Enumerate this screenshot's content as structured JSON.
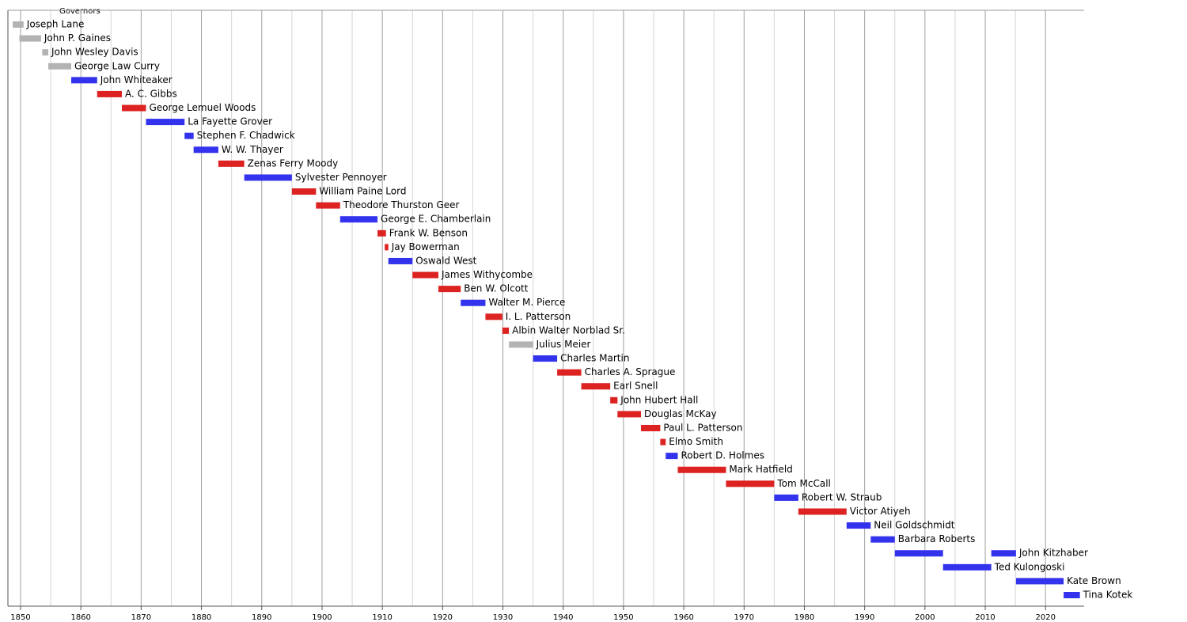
{
  "chart_data": {
    "type": "timeline",
    "title": "Governors",
    "xlim": [
      1847.9,
      2026.4
    ],
    "xticks": [
      1850,
      1860,
      1870,
      1880,
      1890,
      1900,
      1910,
      1920,
      1930,
      1940,
      1950,
      1960,
      1970,
      1980,
      1990,
      2000,
      2010,
      2020
    ],
    "minor_xticks": [
      1855,
      1865,
      1875,
      1885,
      1895,
      1905,
      1915,
      1925,
      1935,
      1945,
      1955,
      1965,
      1975,
      1985,
      1995,
      2005,
      2015
    ],
    "grid": true,
    "rows": [
      {
        "name": "Joseph Lane",
        "color": "#b3b3b3",
        "spans": [
          [
            1848.7,
            1850.5
          ]
        ]
      },
      {
        "name": "John P. Gaines",
        "color": "#b3b3b3",
        "spans": [
          [
            1849.8,
            1853.4
          ]
        ]
      },
      {
        "name": "John Wesley Davis",
        "color": "#b3b3b3",
        "spans": [
          [
            1853.6,
            1854.6
          ]
        ]
      },
      {
        "name": "George Law Curry",
        "color": "#b3b3b3",
        "spans": [
          [
            1854.6,
            1858.4
          ]
        ]
      },
      {
        "name": "John Whiteaker",
        "color": "#3333ee",
        "spans": [
          [
            1858.4,
            1862.7
          ]
        ]
      },
      {
        "name": "A. C. Gibbs",
        "color": "#dd2222",
        "spans": [
          [
            1862.7,
            1866.8
          ]
        ]
      },
      {
        "name": "George Lemuel Woods",
        "color": "#dd2222",
        "spans": [
          [
            1866.8,
            1870.8
          ]
        ]
      },
      {
        "name": "La Fayette Grover",
        "color": "#3333ee",
        "spans": [
          [
            1870.8,
            1877.2
          ]
        ]
      },
      {
        "name": "Stephen F. Chadwick",
        "color": "#3333ee",
        "spans": [
          [
            1877.2,
            1878.7
          ]
        ]
      },
      {
        "name": "W. W. Thayer",
        "color": "#3333ee",
        "spans": [
          [
            1878.7,
            1882.8
          ]
        ]
      },
      {
        "name": "Zenas Ferry Moody",
        "color": "#dd2222",
        "spans": [
          [
            1882.8,
            1887.1
          ]
        ]
      },
      {
        "name": "Sylvester Pennoyer",
        "color": "#3333ee",
        "spans": [
          [
            1887.1,
            1895.0
          ]
        ]
      },
      {
        "name": "William Paine Lord",
        "color": "#dd2222",
        "spans": [
          [
            1895.0,
            1899.0
          ]
        ]
      },
      {
        "name": "Theodore Thurston Geer",
        "color": "#dd2222",
        "spans": [
          [
            1899.0,
            1903.0
          ]
        ]
      },
      {
        "name": "George E. Chamberlain",
        "color": "#3333ee",
        "spans": [
          [
            1903.0,
            1909.2
          ]
        ]
      },
      {
        "name": "Frank W. Benson",
        "color": "#dd2222",
        "spans": [
          [
            1909.2,
            1910.6
          ]
        ]
      },
      {
        "name": "Jay Bowerman",
        "color": "#dd2222",
        "spans": [
          [
            1910.4,
            1911.0
          ]
        ]
      },
      {
        "name": "Oswald West",
        "color": "#3333ee",
        "spans": [
          [
            1911.0,
            1915.0
          ]
        ]
      },
      {
        "name": "James Withycombe",
        "color": "#dd2222",
        "spans": [
          [
            1915.0,
            1919.3
          ]
        ]
      },
      {
        "name": "Ben W. Olcott",
        "color": "#dd2222",
        "spans": [
          [
            1919.3,
            1923.0
          ]
        ]
      },
      {
        "name": "Walter M. Pierce",
        "color": "#3333ee",
        "spans": [
          [
            1923.0,
            1927.1
          ]
        ]
      },
      {
        "name": "I. L. Patterson",
        "color": "#dd2222",
        "spans": [
          [
            1927.1,
            1929.9
          ]
        ]
      },
      {
        "name": "Albin Walter Norblad Sr.",
        "color": "#dd2222",
        "spans": [
          [
            1929.9,
            1931.0
          ]
        ]
      },
      {
        "name": "Julius Meier",
        "color": "#b3b3b3",
        "spans": [
          [
            1931.0,
            1935.0
          ]
        ]
      },
      {
        "name": "Charles Martin",
        "color": "#3333ee",
        "spans": [
          [
            1935.0,
            1939.0
          ]
        ]
      },
      {
        "name": "Charles A. Sprague",
        "color": "#dd2222",
        "spans": [
          [
            1939.0,
            1943.0
          ]
        ]
      },
      {
        "name": "Earl Snell",
        "color": "#dd2222",
        "spans": [
          [
            1943.0,
            1947.8
          ]
        ]
      },
      {
        "name": "John Hubert Hall",
        "color": "#dd2222",
        "spans": [
          [
            1947.8,
            1949.0
          ]
        ]
      },
      {
        "name": "Douglas McKay",
        "color": "#dd2222",
        "spans": [
          [
            1949.0,
            1952.9
          ]
        ]
      },
      {
        "name": "Paul L. Patterson",
        "color": "#dd2222",
        "spans": [
          [
            1952.9,
            1956.1
          ]
        ]
      },
      {
        "name": "Elmo Smith",
        "color": "#dd2222",
        "spans": [
          [
            1956.1,
            1957.0
          ]
        ]
      },
      {
        "name": "Robert D. Holmes",
        "color": "#3333ee",
        "spans": [
          [
            1957.0,
            1959.0
          ]
        ]
      },
      {
        "name": "Mark Hatfield",
        "color": "#dd2222",
        "spans": [
          [
            1959.0,
            1967.0
          ]
        ]
      },
      {
        "name": "Tom McCall",
        "color": "#dd2222",
        "spans": [
          [
            1967.0,
            1975.0
          ]
        ]
      },
      {
        "name": "Robert W. Straub",
        "color": "#3333ee",
        "spans": [
          [
            1975.0,
            1979.0
          ]
        ]
      },
      {
        "name": "Victor Atiyeh",
        "color": "#dd2222",
        "spans": [
          [
            1979.0,
            1987.0
          ]
        ]
      },
      {
        "name": "Neil Goldschmidt",
        "color": "#3333ee",
        "spans": [
          [
            1987.0,
            1991.0
          ]
        ]
      },
      {
        "name": "Barbara Roberts",
        "color": "#3333ee",
        "spans": [
          [
            1991.0,
            1995.0
          ]
        ]
      },
      {
        "name": "John Kitzhaber",
        "color": "#3333ee",
        "spans": [
          [
            1995.0,
            2003.0
          ],
          [
            2011.0,
            2015.1
          ]
        ]
      },
      {
        "name": "Ted Kulongoski",
        "color": "#3333ee",
        "spans": [
          [
            2003.0,
            2011.0
          ]
        ]
      },
      {
        "name": "Kate Brown",
        "color": "#3333ee",
        "spans": [
          [
            2015.1,
            2023.0
          ]
        ]
      },
      {
        "name": "Tina Kotek",
        "color": "#3333ee",
        "spans": [
          [
            2023.0,
            2025.7
          ]
        ]
      }
    ]
  }
}
